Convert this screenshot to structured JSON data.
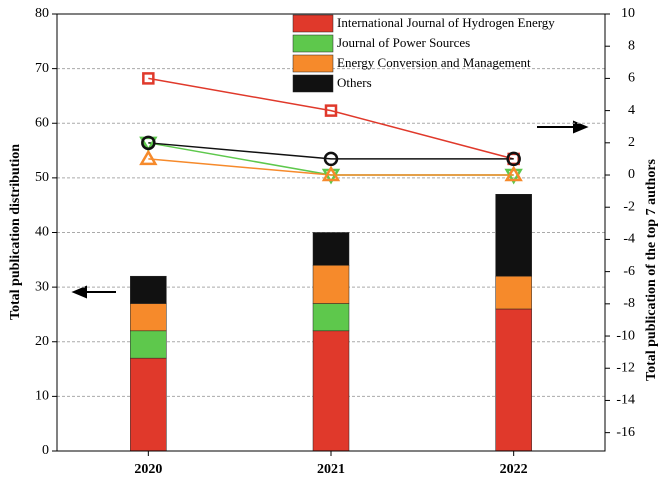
{
  "chart_data": {
    "type": "combo",
    "categories": [
      "2020",
      "2021",
      "2022"
    ],
    "ylabel": "Total publication distribution",
    "y2label": "Total publication of the top 7 authors",
    "series": [
      {
        "name": "International Journal of Hydrogen Energy",
        "color": "#e0392b",
        "marker": "square",
        "values": [
          17,
          22,
          26
        ],
        "y2_values": [
          6,
          4,
          1
        ]
      },
      {
        "name": "Journal of Power Sources",
        "color": "#5ec84c",
        "marker": "triangle-down",
        "values": [
          5,
          5,
          0
        ],
        "y2_values": [
          2,
          0,
          0
        ]
      },
      {
        "name": "Energy Conversion and Management",
        "color": "#f68a2b",
        "marker": "triangle-up",
        "values": [
          5,
          7,
          6
        ],
        "y2_values": [
          1,
          0,
          0
        ]
      },
      {
        "name": "Others",
        "color": "#111111",
        "marker": "circle",
        "values": [
          5,
          6,
          15
        ],
        "y2_values": [
          2,
          1,
          1
        ]
      }
    ],
    "ylim": [
      0,
      80
    ],
    "yticks": [
      0,
      10,
      20,
      30,
      40,
      50,
      60,
      70,
      80
    ],
    "y2lim": [
      -17.14,
      10
    ],
    "y2ticks": [
      10,
      8,
      6,
      4,
      2,
      0,
      -2,
      -4,
      -6,
      -8,
      -10,
      -12,
      -14,
      -16
    ],
    "grid": true,
    "legend": "upper right"
  }
}
